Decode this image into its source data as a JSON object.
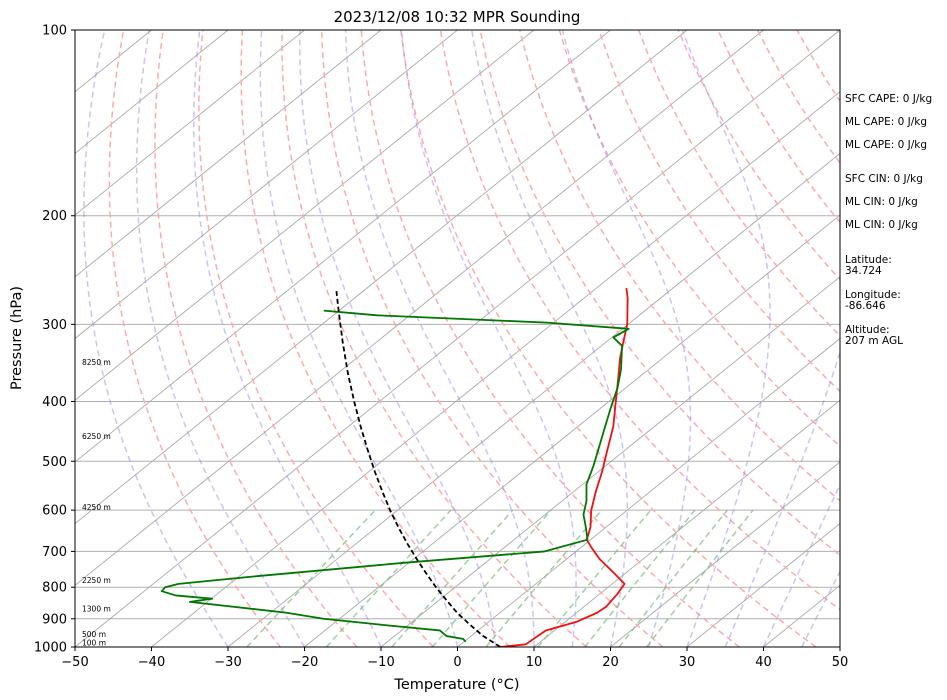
{
  "chart_data": {
    "type": "line",
    "title": "2023/12/08 10:32 MPR Sounding",
    "xlabel": "Temperature (°C)",
    "ylabel": "Pressure (hPa)",
    "xlim": [
      -50,
      50
    ],
    "ylim": [
      1000,
      100
    ],
    "yscale": "log",
    "skew": true,
    "x_ticks": [
      -50,
      -40,
      -30,
      -20,
      -10,
      0,
      10,
      20,
      30,
      40,
      50
    ],
    "x_tick_labels": [
      "−50",
      "−40",
      "−30",
      "−20",
      "−10",
      "0",
      "10",
      "20",
      "30",
      "40",
      "50"
    ],
    "y_ticks": [
      1000,
      900,
      800,
      700,
      600,
      500,
      400,
      300,
      200,
      100
    ],
    "y_tick_labels": [
      "1000",
      "900",
      "800",
      "700",
      "600",
      "500",
      "400",
      "300",
      "200",
      "100"
    ],
    "grid": true,
    "series": [
      {
        "role": "temperature",
        "color": "#ee1111",
        "style": "solid",
        "points": [
          [
            1000,
            5.6
          ],
          [
            990,
            8.5
          ],
          [
            975,
            8.6
          ],
          [
            960,
            8.7
          ],
          [
            940,
            8.9
          ],
          [
            910,
            11.5
          ],
          [
            880,
            12.7
          ],
          [
            860,
            12.9
          ],
          [
            840,
            12.6
          ],
          [
            820,
            12.3
          ],
          [
            790,
            11.6
          ],
          [
            760,
            8.6
          ],
          [
            720,
            4.3
          ],
          [
            690,
            1.4
          ],
          [
            670,
            -0.5
          ],
          [
            640,
            -2.0
          ],
          [
            600,
            -4.7
          ],
          [
            560,
            -7.1
          ],
          [
            520,
            -9.5
          ],
          [
            480,
            -12.3
          ],
          [
            440,
            -15.3
          ],
          [
            400,
            -19.1
          ],
          [
            370,
            -22.2
          ],
          [
            340,
            -25.6
          ],
          [
            320,
            -27.8
          ],
          [
            300,
            -30.1
          ],
          [
            285,
            -32.3
          ],
          [
            272,
            -34.3
          ],
          [
            262,
            -36.1
          ]
        ]
      },
      {
        "role": "dewpoint",
        "color": "#007700",
        "style": "solid",
        "points": [
          [
            980,
            0.2
          ],
          [
            970,
            -0.6
          ],
          [
            960,
            -3.2
          ],
          [
            940,
            -5.0
          ],
          [
            920,
            -13.7
          ],
          [
            900,
            -22.1
          ],
          [
            880,
            -27.9
          ],
          [
            845,
            -42.3
          ],
          [
            835,
            -39.9
          ],
          [
            825,
            -45.2
          ],
          [
            812,
            -47.7
          ],
          [
            800,
            -47.9
          ],
          [
            790,
            -46.7
          ],
          [
            770,
            -38.7
          ],
          [
            730,
            -20.5
          ],
          [
            700,
            -4.1
          ],
          [
            670,
            -0.4
          ],
          [
            640,
            -2.6
          ],
          [
            610,
            -5.0
          ],
          [
            580,
            -6.8
          ],
          [
            545,
            -9.5
          ],
          [
            510,
            -11.5
          ],
          [
            480,
            -13.5
          ],
          [
            445,
            -16.0
          ],
          [
            410,
            -18.7
          ],
          [
            380,
            -21.1
          ],
          [
            355,
            -23.6
          ],
          [
            325,
            -27.3
          ],
          [
            315,
            -29.8
          ],
          [
            305,
            -29.2
          ],
          [
            298,
            -40.9
          ],
          [
            290,
            -64.3
          ],
          [
            285,
            -72.0
          ]
        ]
      },
      {
        "role": "parcel-profile",
        "color": "#000000",
        "style": "dashed",
        "points": [
          [
            1000,
            5.6
          ],
          [
            960,
            1.6
          ],
          [
            920,
            -2.0
          ],
          [
            880,
            -5.6
          ],
          [
            840,
            -9.0
          ],
          [
            800,
            -12.5
          ],
          [
            760,
            -16.0
          ],
          [
            720,
            -19.6
          ],
          [
            680,
            -23.3
          ],
          [
            640,
            -27.1
          ],
          [
            600,
            -31.0
          ],
          [
            560,
            -35.0
          ],
          [
            520,
            -39.2
          ],
          [
            480,
            -43.6
          ],
          [
            440,
            -48.3
          ],
          [
            400,
            -53.3
          ],
          [
            360,
            -58.7
          ],
          [
            320,
            -64.5
          ],
          [
            300,
            -67.6
          ],
          [
            280,
            -70.9
          ],
          [
            265,
            -73.5
          ]
        ]
      }
    ],
    "height_labels": [
      {
        "pressure": 985,
        "label": "100 m"
      },
      {
        "pressure": 955,
        "label": "500 m"
      },
      {
        "pressure": 868,
        "label": "1300 m"
      },
      {
        "pressure": 780,
        "label": "2250 m"
      },
      {
        "pressure": 594,
        "label": "4250 m"
      },
      {
        "pressure": 456,
        "label": "6250 m"
      },
      {
        "pressure": 346,
        "label": "8250 m"
      }
    ],
    "annotations": [
      {
        "id": "sfc-cape",
        "lines": [
          "SFC CAPE: 0 J/kg"
        ]
      },
      {
        "id": "ml-cape-1",
        "lines": [
          "ML CAPE: 0 J/kg"
        ]
      },
      {
        "id": "ml-cape-2",
        "lines": [
          "ML CAPE: 0 J/kg"
        ]
      },
      {
        "id": "sfc-cin",
        "lines": [
          "SFC CIN: 0 J/kg"
        ]
      },
      {
        "id": "ml-cin-1",
        "lines": [
          "ML CIN: 0 J/kg"
        ]
      },
      {
        "id": "ml-cin-2",
        "lines": [
          "ML CIN: 0 J/kg"
        ]
      },
      {
        "id": "latitude",
        "lines": [
          "Latitude:",
          "34.724"
        ]
      },
      {
        "id": "longitude",
        "lines": [
          "Longitude:",
          "-86.646"
        ]
      },
      {
        "id": "altitude",
        "lines": [
          "Altitude:",
          "207 m AGL"
        ]
      }
    ],
    "background_lines": {
      "isotherms": {
        "color": "#aaaaaa",
        "start": -150,
        "end": 50,
        "step": 10
      },
      "dry_adiabats": {
        "color": "#ffaaaa",
        "style": "dashed",
        "theta_k": [
          250,
          260,
          270,
          280,
          290,
          300,
          310,
          320,
          330,
          340,
          350,
          360,
          370,
          380,
          390,
          400,
          410,
          420,
          430,
          440,
          450,
          460,
          470,
          480
        ]
      },
      "moist_adiabats": {
        "color": "#9988ee",
        "style": "dashed",
        "start_temps_c": [
          -30,
          -20,
          -10,
          0,
          5,
          10,
          15,
          20,
          25,
          30,
          35,
          40,
          45,
          50
        ]
      },
      "mixing_ratio_lines": {
        "color": "#77bb77",
        "style": "dashed",
        "g_per_kg": [
          0.4,
          1,
          2,
          3,
          5,
          8,
          12,
          16,
          20
        ],
        "top_pressure": 600
      }
    }
  }
}
